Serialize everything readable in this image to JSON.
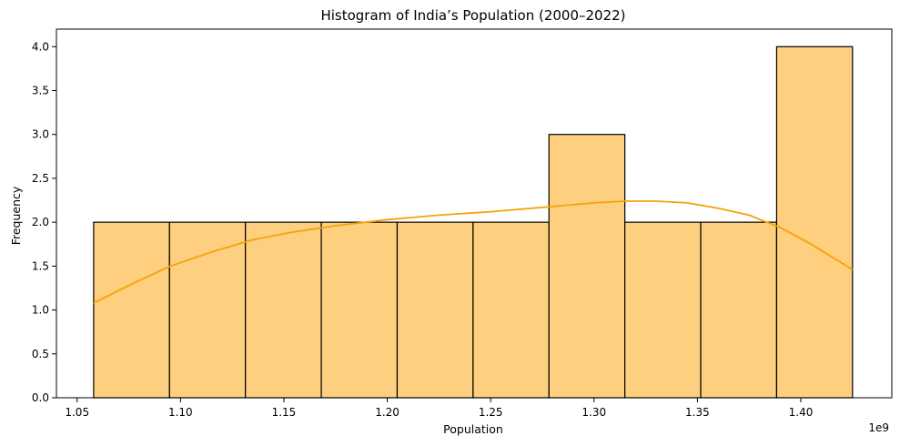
{
  "chart_data": {
    "type": "bar",
    "title": "Histogram of India’s Population (2000–2022)",
    "xlabel": "Population",
    "ylabel": "Frequency",
    "x_offset_label": "1e9",
    "xlim": [
      1.04,
      1.444
    ],
    "ylim": [
      0,
      4.2
    ],
    "bin_edges": [
      1.058,
      1.0947,
      1.1314,
      1.1681,
      1.2048,
      1.2415,
      1.2782,
      1.3149,
      1.3516,
      1.3883,
      1.425
    ],
    "values": [
      2,
      2,
      2,
      2,
      2,
      2,
      3,
      2,
      2,
      4
    ],
    "xticks": [
      1.05,
      1.1,
      1.15,
      1.2,
      1.25,
      1.3,
      1.35,
      1.4
    ],
    "xtick_labels": [
      "1.05",
      "1.10",
      "1.15",
      "1.20",
      "1.25",
      "1.30",
      "1.35",
      "1.40"
    ],
    "yticks": [
      0,
      0.5,
      1.0,
      1.5,
      2.0,
      2.5,
      3.0,
      3.5,
      4.0
    ],
    "ytick_labels": [
      "0.0",
      "0.5",
      "1.0",
      "1.5",
      "2.0",
      "2.5",
      "3.0",
      "3.5",
      "4.0"
    ],
    "kde": {
      "x": [
        1.058,
        1.075,
        1.095,
        1.115,
        1.135,
        1.155,
        1.175,
        1.2,
        1.225,
        1.25,
        1.275,
        1.3,
        1.315,
        1.33,
        1.345,
        1.36,
        1.375,
        1.39,
        1.405,
        1.425
      ],
      "y": [
        1.08,
        1.28,
        1.5,
        1.66,
        1.8,
        1.89,
        1.96,
        2.03,
        2.08,
        2.12,
        2.17,
        2.22,
        2.24,
        2.24,
        2.22,
        2.16,
        2.08,
        1.94,
        1.75,
        1.46
      ]
    },
    "colors": {
      "bar_fill": "#fecf7e",
      "bar_edge": "#000000",
      "kde_line": "#f5a30a"
    },
    "grid": false,
    "legend": "none"
  }
}
